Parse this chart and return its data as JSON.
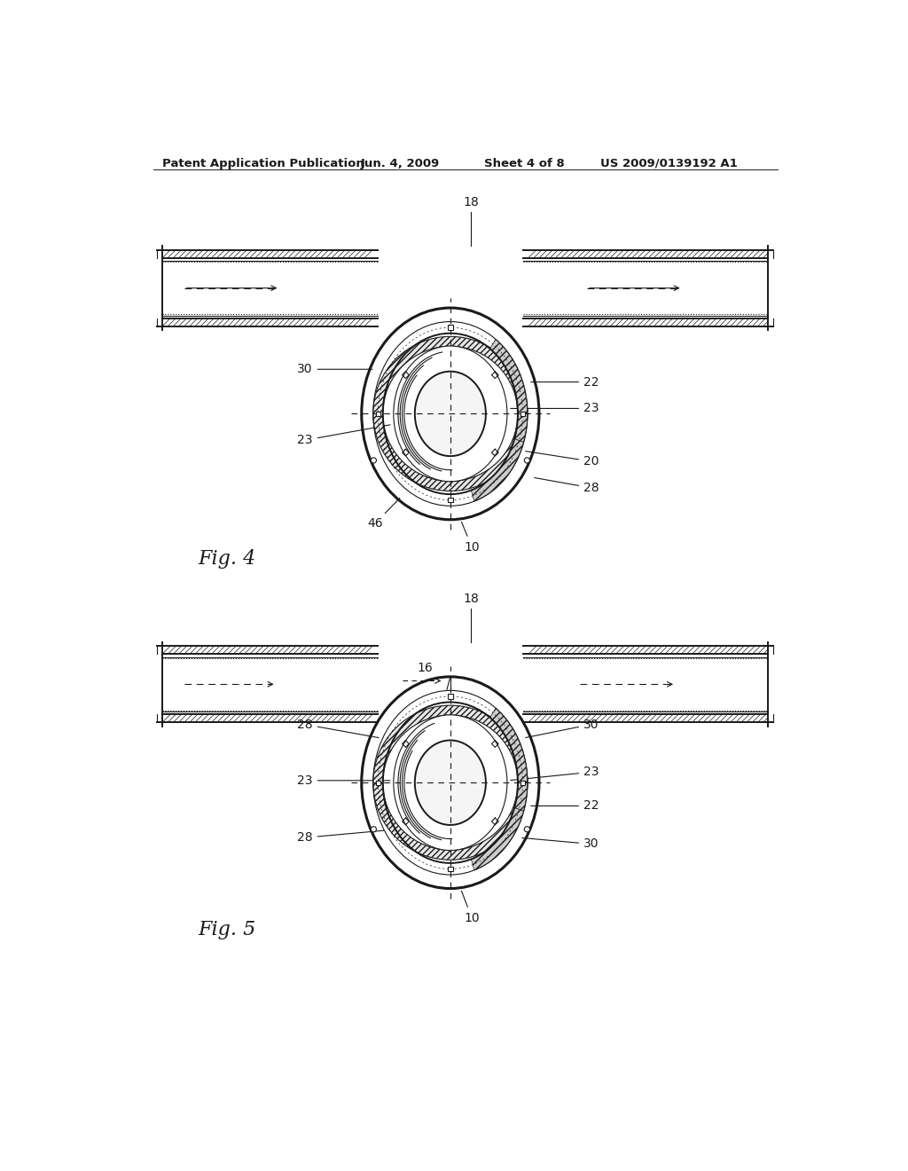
{
  "background_color": "#ffffff",
  "header_text": "Patent Application Publication",
  "header_date": "Jun. 4, 2009",
  "header_sheet": "Sheet 4 of 8",
  "header_patent": "US 2009/0139192 A1",
  "fig4_label": "Fig. 4",
  "fig5_label": "Fig. 5",
  "line_color": "#1a1a1a"
}
